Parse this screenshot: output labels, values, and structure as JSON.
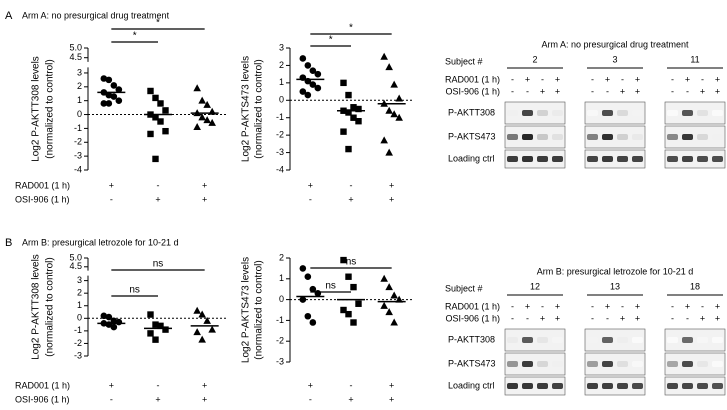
{
  "panels": [
    {
      "letter": "A",
      "heading": "Arm A: no presurgical drug treatment",
      "blot": {
        "title": "Arm A: no presurgical drug treatment",
        "subject_label": "Subject #",
        "subjects": [
          "2",
          "3",
          "11"
        ],
        "treatments": [
          {
            "name": "RAD001 (1 h)",
            "signs": [
              "-",
              "+",
              "-",
              "+"
            ]
          },
          {
            "name": "OSI-906 (1 h)",
            "signs": [
              "-",
              "-",
              "+",
              "+"
            ]
          }
        ],
        "bands": [
          "P-AKTT308",
          "P-AKTS473",
          "Loading ctrl"
        ]
      }
    },
    {
      "letter": "B",
      "heading": "Arm B: presurgical letrozole for 10-21 d",
      "blot": {
        "title": "Arm B: presurgical letrozole for 10-21 d",
        "subject_label": "Subject #",
        "subjects": [
          "12",
          "13",
          "18"
        ],
        "treatments": [
          {
            "name": "RAD001 (1 h)",
            "signs": [
              "-",
              "+",
              "-",
              "+"
            ]
          },
          {
            "name": "OSI-906 (1 h)",
            "signs": [
              "-",
              "-",
              "+",
              "+"
            ]
          }
        ],
        "bands": [
          "P-AKTT308",
          "P-AKTS473",
          "Loading ctrl"
        ]
      }
    }
  ],
  "chart_data": [
    {
      "type": "strip",
      "ylabel": "Log2 P-AKTT308 levels",
      "ylabel_sub": "(normalized to control)",
      "ylim": [
        -4,
        5
      ],
      "yticks": [
        -4,
        -3,
        -2,
        -1,
        0,
        1,
        2,
        3,
        4.5,
        {
          "value": 5,
          "label": "5.0"
        }
      ],
      "axis_break": true,
      "zero_line": true,
      "color": "#000000",
      "series": [
        {
          "marker": "circle",
          "values": [
            2.6,
            2.5,
            2.1,
            1.8,
            1.6,
            1.4,
            1.3,
            1.0,
            0.8,
            0.8
          ]
        },
        {
          "marker": "square",
          "values": [
            1.7,
            1.2,
            0.8,
            0.3,
            0.0,
            -0.2,
            -0.5,
            -1.2,
            -1.4,
            -3.2
          ]
        },
        {
          "marker": "triangle",
          "values": [
            1.9,
            1.0,
            0.7,
            0.2,
            0.1,
            -0.2,
            -0.4,
            -0.6,
            -0.9
          ]
        }
      ],
      "center_lines": [
        1.6,
        0.0,
        0.1
      ],
      "comparisons": [
        {
          "label": "*"
        },
        {
          "label": "*"
        }
      ],
      "treatments": [
        {
          "name": "RAD001 (1 h)",
          "signs": [
            "+",
            "-",
            "+"
          ]
        },
        {
          "name": "OSI-906 (1 h)",
          "signs": [
            "-",
            "+",
            "+"
          ]
        }
      ]
    },
    {
      "type": "strip",
      "ylabel": "Log2 P-AKTS473 levels",
      "ylabel_sub": "(normalized to control)",
      "ylim": [
        -4,
        3
      ],
      "yticks": [
        -4,
        -3,
        -2,
        -1,
        0,
        1,
        2,
        3
      ],
      "axis_break": false,
      "zero_line": true,
      "color": "#000000",
      "series": [
        {
          "marker": "circle",
          "values": [
            2.4,
            2.0,
            1.7,
            1.5,
            1.3,
            1.1,
            0.9,
            0.7,
            0.5,
            0.3
          ]
        },
        {
          "marker": "square",
          "values": [
            1.0,
            0.3,
            -0.4,
            -0.5,
            -0.6,
            -0.7,
            -1.0,
            -1.2,
            -1.8,
            -2.8
          ]
        },
        {
          "marker": "triangle",
          "values": [
            2.5,
            1.9,
            0.9,
            0.1,
            -0.2,
            -0.6,
            -0.8,
            -1.0,
            -2.3,
            -3.0
          ]
        }
      ],
      "center_lines": [
        1.2,
        -0.6,
        -0.2
      ],
      "comparisons": [
        {
          "label": "*"
        },
        {
          "label": "*"
        }
      ],
      "treatments": [
        {
          "signs": [
            "+",
            "-",
            "+"
          ]
        },
        {
          "signs": [
            "-",
            "+",
            "+"
          ]
        }
      ]
    },
    {
      "type": "strip",
      "ylabel": "Log2 P-AKTT308 levels",
      "ylabel_sub": "(normalized to control)",
      "ylim": [
        -3,
        5
      ],
      "yticks": [
        -3,
        -2,
        -1,
        0,
        1,
        2,
        3,
        4.5,
        {
          "value": 5,
          "label": "5.0"
        }
      ],
      "axis_break": true,
      "zero_line": true,
      "color": "#000000",
      "series": [
        {
          "marker": "circle",
          "values": [
            0.2,
            0.1,
            -0.2,
            -0.3,
            -0.4,
            -0.5,
            -0.7
          ]
        },
        {
          "marker": "square",
          "values": [
            0.3,
            -0.5,
            -0.6,
            -0.9,
            -1.2,
            -1.7
          ]
        },
        {
          "marker": "triangle",
          "values": [
            0.6,
            0.3,
            -0.2,
            -0.9,
            -1.1,
            -1.7
          ]
        }
      ],
      "center_lines": [
        -0.4,
        -0.8,
        -0.6
      ],
      "comparisons": [
        {
          "label": "ns"
        },
        {
          "label": "ns"
        }
      ],
      "treatments": [
        {
          "name": "RAD001 (1 h)",
          "signs": [
            "+",
            "-",
            "+"
          ]
        },
        {
          "name": "OSI-906 (1 h)",
          "signs": [
            "-",
            "+",
            "+"
          ]
        }
      ]
    },
    {
      "type": "strip",
      "ylabel": "Log2 P-AKTS473 levels",
      "ylabel_sub": "(normalized to control)",
      "ylim": [
        -3,
        2
      ],
      "yticks": [
        -3,
        -2,
        -1,
        0,
        1,
        2
      ],
      "axis_break": false,
      "zero_line": true,
      "color": "#000000",
      "series": [
        {
          "marker": "circle",
          "values": [
            1.5,
            1.1,
            0.5,
            0.3,
            0.0,
            -0.8,
            -1.1
          ]
        },
        {
          "marker": "square",
          "values": [
            1.9,
            1.1,
            0.6,
            -0.2,
            -0.5,
            -0.7,
            -1.1
          ]
        },
        {
          "marker": "triangle",
          "values": [
            1.0,
            0.6,
            0.2,
            0.0,
            -0.3,
            -0.6,
            -1.1
          ]
        }
      ],
      "center_lines": [
        0.15,
        0.0,
        -0.1
      ],
      "comparisons": [
        {
          "label": "ns"
        },
        {
          "label": "ns"
        }
      ],
      "treatments": [
        {
          "signs": [
            "+",
            "-",
            "+"
          ]
        },
        {
          "signs": [
            "-",
            "+",
            "+"
          ]
        }
      ]
    }
  ]
}
